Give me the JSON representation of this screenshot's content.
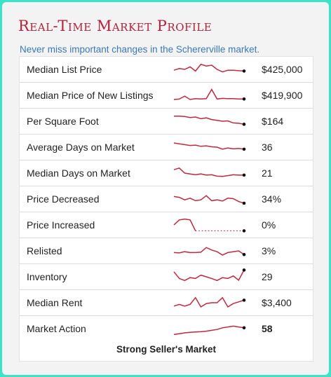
{
  "header": {
    "title": "Real-Time Market Profile",
    "subtitle": "Never miss important changes in the Schererville market."
  },
  "rows": [
    {
      "label": "Median List Price",
      "value": "$425,000",
      "spark": [
        0.55,
        0.45,
        0.5,
        0.35,
        0.6,
        0.2,
        0.3,
        0.25,
        0.5,
        0.65,
        0.55,
        0.55,
        0.58,
        0.6
      ]
    },
    {
      "label": "Median Price of New Listings",
      "value": "$419,900",
      "spark": [
        0.75,
        0.72,
        0.55,
        0.75,
        0.7,
        0.72,
        0.7,
        0.15,
        0.72,
        0.68,
        0.7,
        0.7,
        0.72,
        0.72
      ]
    },
    {
      "label": "Per Square Foot",
      "value": "$164",
      "spark": [
        0.2,
        0.2,
        0.22,
        0.28,
        0.25,
        0.35,
        0.3,
        0.4,
        0.45,
        0.5,
        0.48,
        0.6,
        0.62,
        0.68
      ]
    },
    {
      "label": "Average Days on Market",
      "value": "36",
      "spark": [
        0.25,
        0.3,
        0.35,
        0.4,
        0.38,
        0.45,
        0.42,
        0.48,
        0.5,
        0.62,
        0.55,
        0.6,
        0.58,
        0.62
      ]
    },
    {
      "label": "Median Days on Market",
      "value": "21",
      "spark": [
        0.3,
        0.2,
        0.5,
        0.55,
        0.6,
        0.55,
        0.62,
        0.6,
        0.68,
        0.7,
        0.65,
        0.6,
        0.62,
        0.62
      ]
    },
    {
      "label": "Price Decreased",
      "value": "34%",
      "spark": [
        0.35,
        0.4,
        0.55,
        0.45,
        0.6,
        0.55,
        0.3,
        0.6,
        0.55,
        0.62,
        0.45,
        0.48,
        0.65,
        0.75
      ]
    },
    {
      "label": "Price Increased",
      "value": "0%",
      "spark": [
        0.5,
        0.2,
        0.15,
        0.2,
        0.85,
        0.85,
        0.85,
        0.85,
        0.85,
        0.85,
        0.85,
        0.85,
        0.85,
        0.85
      ],
      "dotted_from": 4
    },
    {
      "label": "Relisted",
      "value": "3%",
      "spark": [
        0.6,
        0.62,
        0.55,
        0.6,
        0.6,
        0.58,
        0.3,
        0.45,
        0.55,
        0.75,
        0.6,
        0.55,
        0.5,
        0.72
      ]
    },
    {
      "label": "Inventory",
      "value": "29",
      "spark": [
        0.2,
        0.6,
        0.72,
        0.55,
        0.6,
        0.4,
        0.5,
        0.6,
        0.72,
        0.55,
        0.6,
        0.45,
        0.7,
        0.1
      ]
    },
    {
      "label": "Median Rent",
      "value": "$3,400",
      "spark": [
        0.7,
        0.6,
        0.7,
        0.6,
        0.2,
        0.75,
        0.55,
        0.5,
        0.5,
        0.2,
        0.75,
        0.55,
        0.45,
        0.35
      ]
    },
    {
      "label": "Market Action",
      "value": "58",
      "spark": [
        0.85,
        0.8,
        0.75,
        0.72,
        0.7,
        0.68,
        0.65,
        0.6,
        0.55,
        0.45,
        0.4,
        0.35,
        0.4,
        0.45
      ],
      "bold": true
    }
  ],
  "footer": "Strong Seller's Market",
  "colors": {
    "line": "#c0283d",
    "dot": "#111111",
    "title": "#b3213a",
    "subtitle": "#3c78b5"
  }
}
